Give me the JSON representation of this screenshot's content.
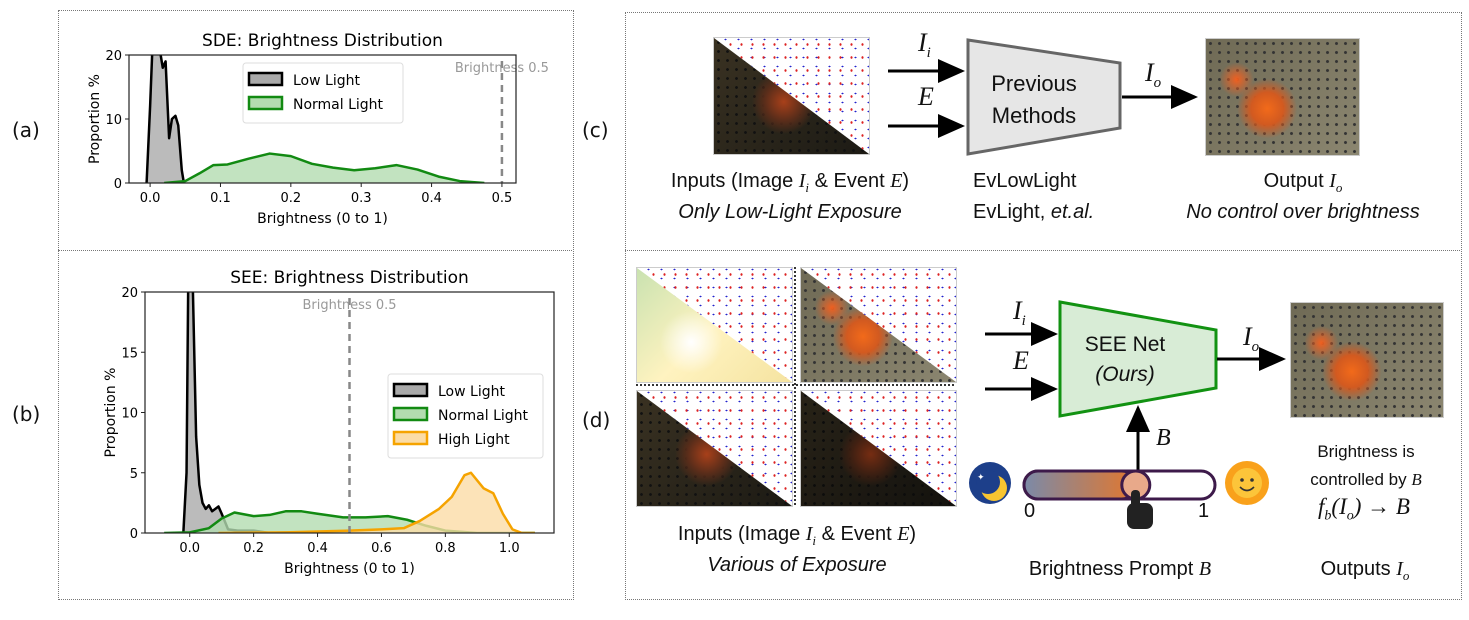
{
  "panel_labels": {
    "a": "(a)",
    "b": "(b)",
    "c": "(c)",
    "d": "(d)"
  },
  "chart_data": [
    {
      "type": "area",
      "title": "SDE: Brightness Distribution",
      "xlabel": "Brightness (0 to 1)",
      "ylabel": "Proportion %",
      "xlim": [
        -0.03,
        0.52
      ],
      "ylim": [
        0,
        20
      ],
      "xticks": [
        "0.0",
        "0.1",
        "0.2",
        "0.3",
        "0.4",
        "0.5"
      ],
      "yticks": [
        "0",
        "10",
        "20"
      ],
      "legend_placement": "top-center",
      "annotation": {
        "text": "Brightness 0.5",
        "x": 0.5,
        "style": "dashed-gray"
      },
      "grid": false,
      "series": [
        {
          "name": "Low Light",
          "color": "#000000",
          "fill": "#aaaaaa",
          "points": [
            [
              -0.005,
              0
            ],
            [
              0,
              12
            ],
            [
              0.005,
              26
            ],
            [
              0.012,
              26
            ],
            [
              0.015,
              20
            ],
            [
              0.018,
              18
            ],
            [
              0.022,
              19
            ],
            [
              0.027,
              7
            ],
            [
              0.031,
              10
            ],
            [
              0.036,
              10.5
            ],
            [
              0.04,
              9
            ],
            [
              0.045,
              2
            ],
            [
              0.048,
              0
            ]
          ]
        },
        {
          "name": "Normal Light",
          "color": "#128a12",
          "fill": "#b3dcb0",
          "points": [
            [
              0.02,
              0
            ],
            [
              0.05,
              0.3
            ],
            [
              0.07,
              1.5
            ],
            [
              0.09,
              2.8
            ],
            [
              0.11,
              2.9
            ],
            [
              0.14,
              3.8
            ],
            [
              0.17,
              4.6
            ],
            [
              0.2,
              4.2
            ],
            [
              0.23,
              3.0
            ],
            [
              0.26,
              2.4
            ],
            [
              0.29,
              2.0
            ],
            [
              0.32,
              2.3
            ],
            [
              0.35,
              2.8
            ],
            [
              0.38,
              2.1
            ],
            [
              0.41,
              1.0
            ],
            [
              0.44,
              0.3
            ],
            [
              0.475,
              0
            ]
          ]
        }
      ]
    },
    {
      "type": "area",
      "title": "SEE: Brightness Distribution",
      "xlabel": "Brightness (0 to 1)",
      "ylabel": "Proportion %",
      "xlim": [
        -0.14,
        1.14
      ],
      "ylim": [
        0,
        20
      ],
      "xticks": [
        "0.0",
        "0.2",
        "0.4",
        "0.6",
        "0.8",
        "1.0"
      ],
      "yticks": [
        "0",
        "5",
        "10",
        "15",
        "20"
      ],
      "legend_placement": "center-right",
      "annotation": {
        "text": "Brightness 0.5",
        "x": 0.5,
        "style": "dashed-gray"
      },
      "grid": false,
      "series": [
        {
          "name": "Low Light",
          "color": "#000000",
          "fill": "#aaaaaa",
          "points": [
            [
              -0.02,
              0
            ],
            [
              -0.01,
              5
            ],
            [
              -0.005,
              20
            ],
            [
              0,
              30
            ],
            [
              0.005,
              30
            ],
            [
              0.01,
              20
            ],
            [
              0.02,
              8
            ],
            [
              0.03,
              4
            ],
            [
              0.04,
              2.5
            ],
            [
              0.05,
              2
            ],
            [
              0.06,
              2.3
            ],
            [
              0.07,
              1.8
            ],
            [
              0.09,
              2.2
            ],
            [
              0.1,
              1.6
            ],
            [
              0.12,
              0.3
            ],
            [
              0.15,
              0.2
            ],
            [
              0.2,
              0.2
            ],
            [
              0.25,
              0
            ],
            [
              0.3,
              0.05
            ],
            [
              0.35,
              0
            ]
          ]
        },
        {
          "name": "Normal Light",
          "color": "#128a12",
          "fill": "#b3dcb0",
          "points": [
            [
              -0.08,
              0
            ],
            [
              0,
              0.05
            ],
            [
              0.06,
              0.4
            ],
            [
              0.1,
              1.2
            ],
            [
              0.14,
              1.7
            ],
            [
              0.2,
              1.4
            ],
            [
              0.25,
              1.5
            ],
            [
              0.3,
              1.8
            ],
            [
              0.35,
              1.8
            ],
            [
              0.4,
              1.6
            ],
            [
              0.48,
              1.3
            ],
            [
              0.55,
              1.3
            ],
            [
              0.62,
              1.4
            ],
            [
              0.68,
              1.1
            ],
            [
              0.74,
              0.6
            ],
            [
              0.8,
              0.2
            ],
            [
              0.9,
              0
            ],
            [
              1.08,
              0
            ]
          ]
        },
        {
          "name": "High Light",
          "color": "#f5a300",
          "fill": "#fbdca6",
          "points": [
            [
              0.09,
              0
            ],
            [
              0.3,
              0.05
            ],
            [
              0.5,
              0.2
            ],
            [
              0.6,
              0.3
            ],
            [
              0.67,
              0.4
            ],
            [
              0.72,
              1.0
            ],
            [
              0.78,
              2.0
            ],
            [
              0.82,
              3.0
            ],
            [
              0.86,
              4.8
            ],
            [
              0.88,
              5.0
            ],
            [
              0.92,
              3.7
            ],
            [
              0.95,
              3.3
            ],
            [
              0.98,
              1.6
            ],
            [
              1.01,
              0.3
            ],
            [
              1.04,
              0
            ],
            [
              1.08,
              0
            ]
          ]
        }
      ]
    }
  ],
  "panel_c": {
    "input_label": "Inputs (Image ",
    "input_Ii": "I",
    "input_i": "i",
    "input_mid": " & Event ",
    "input_E": "E",
    "input_end": ")",
    "input_sub": "Only Low-Light Exposure",
    "arrow_Ii": "I",
    "arrow_i": "i",
    "arrow_E": "E",
    "arrow_Io": "I",
    "arrow_o": "o",
    "block_line1": "Previous",
    "block_line2": "Methods",
    "methods_line1": "EvLowLight",
    "methods_line2a": "EvLight, ",
    "methods_line2b": "et.al.",
    "output_label": "Output ",
    "output_I": "I",
    "output_o": "o",
    "output_sub": "No control over brightness"
  },
  "panel_d": {
    "input_label": "Inputs (Image ",
    "input_Ii": "I",
    "input_i": "i",
    "input_mid": " & Event ",
    "input_E": "E",
    "input_end": ")",
    "input_sub": "Various of Exposure",
    "arrow_Ii": "I",
    "arrow_i": "i",
    "arrow_E": "E",
    "arrow_Io": "I",
    "arrow_o": "o",
    "arrow_B": "B",
    "block_line1": "SEE Net",
    "block_line2": "(Ours)",
    "slider_min": "0",
    "slider_max": "1",
    "slider_value": 0.6,
    "prompt_label": "Brightness Prompt ",
    "prompt_B": "B",
    "note_line1": "Brightness is",
    "note_line2": "controlled by ",
    "note_B": "B",
    "formula": "f",
    "formula_b": "b",
    "formula_rest": "(I",
    "formula_o": "o",
    "formula_end": ") → B",
    "output_label": "Outputs ",
    "output_I": "I",
    "output_o": "o"
  }
}
